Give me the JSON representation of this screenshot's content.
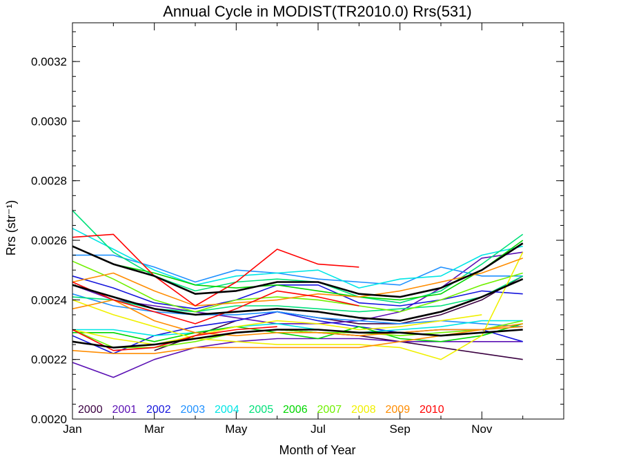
{
  "chart_data": {
    "type": "line",
    "title": "Annual Cycle in MODIST(TR2010.0) Rrs(531)",
    "xlabel": "Month of Year",
    "ylabel": "Rrs (str⁻¹)",
    "xlim": [
      1,
      13
    ],
    "ylim": [
      0.002,
      0.00333
    ],
    "x_ticks": [
      {
        "value": 1,
        "label": "Jan"
      },
      {
        "value": 3,
        "label": "Mar"
      },
      {
        "value": 5,
        "label": "May"
      },
      {
        "value": 7,
        "label": "Jul"
      },
      {
        "value": 9,
        "label": "Sep"
      },
      {
        "value": 11,
        "label": "Nov"
      }
    ],
    "y_ticks": [
      {
        "value": 0.002,
        "label": "0.0020"
      },
      {
        "value": 0.0022,
        "label": "0.0022"
      },
      {
        "value": 0.0024,
        "label": "0.0024"
      },
      {
        "value": 0.0026,
        "label": "0.0026"
      },
      {
        "value": 0.0028,
        "label": "0.0028"
      },
      {
        "value": 0.003,
        "label": "0.0030"
      },
      {
        "value": 0.0032,
        "label": "0.0032"
      }
    ],
    "legend_position": "bottom-left",
    "legend": [
      {
        "label": "2000",
        "color": "#3a0040"
      },
      {
        "label": "2001",
        "color": "#5a10b4"
      },
      {
        "label": "2002",
        "color": "#1414dc"
      },
      {
        "label": "2003",
        "color": "#1e90ff"
      },
      {
        "label": "2004",
        "color": "#00e5e5"
      },
      {
        "label": "2005",
        "color": "#00e07a"
      },
      {
        "label": "2006",
        "color": "#00d600"
      },
      {
        "label": "2007",
        "color": "#70f000"
      },
      {
        "label": "2008",
        "color": "#f0f000"
      },
      {
        "label": "2009",
        "color": "#ff8c00"
      },
      {
        "label": "2010",
        "color": "#ff0000"
      }
    ],
    "series": [
      {
        "color": "#3a0040",
        "x": [
          1,
          2,
          3,
          4,
          5,
          6,
          7,
          8,
          9,
          10,
          11,
          12
        ],
        "y": [
          0.00226,
          0.00224,
          0.00225,
          0.00227,
          0.00229,
          0.0023,
          0.00229,
          0.00228,
          0.00226,
          0.00224,
          0.00222,
          0.0022
        ]
      },
      {
        "color": "#3a0040",
        "x": [
          3,
          4,
          5,
          6,
          7,
          8,
          9,
          10,
          11,
          12
        ],
        "y": [
          0.00223,
          0.00228,
          0.00233,
          0.00236,
          0.00234,
          0.00232,
          0.00232,
          0.00235,
          0.0024,
          0.00248
        ]
      },
      {
        "color": "#5a10b4",
        "x": [
          1,
          2,
          3,
          4,
          5,
          6,
          7,
          8,
          9,
          10,
          11,
          12
        ],
        "y": [
          0.00219,
          0.00214,
          0.0022,
          0.00224,
          0.00226,
          0.00227,
          0.00227,
          0.00227,
          0.00226,
          0.00226,
          0.00226,
          0.00226
        ]
      },
      {
        "color": "#5a10b4",
        "x": [
          1,
          2,
          3,
          4,
          5,
          6,
          7,
          8,
          9,
          10,
          11,
          12
        ],
        "y": [
          0.00245,
          0.0024,
          0.00238,
          0.00236,
          0.00234,
          0.00232,
          0.00232,
          0.00233,
          0.00236,
          0.00244,
          0.00254,
          0.00256
        ]
      },
      {
        "color": "#1414dc",
        "x": [
          1,
          2,
          3,
          4,
          5,
          6,
          7,
          8,
          9,
          10,
          11,
          12
        ],
        "y": [
          0.00228,
          0.00222,
          0.00228,
          0.00231,
          0.00233,
          0.00236,
          0.00233,
          0.00231,
          0.00229,
          0.0023,
          0.0023,
          0.00226
        ]
      },
      {
        "color": "#1414dc",
        "x": [
          1,
          2,
          3,
          4,
          5,
          6,
          7,
          8,
          9,
          10,
          11,
          12
        ],
        "y": [
          0.00248,
          0.00244,
          0.00239,
          0.00237,
          0.0024,
          0.00245,
          0.00245,
          0.00239,
          0.00238,
          0.0024,
          0.00243,
          0.00242
        ]
      },
      {
        "color": "#1e90ff",
        "x": [
          1,
          2,
          3,
          4,
          5,
          6,
          7,
          8,
          9,
          10,
          11,
          12
        ],
        "y": [
          0.00255,
          0.00255,
          0.00251,
          0.00246,
          0.0025,
          0.00249,
          0.00247,
          0.00246,
          0.00245,
          0.00251,
          0.00248,
          0.00248
        ]
      },
      {
        "color": "#1e90ff",
        "x": [
          1,
          2,
          3,
          4,
          5,
          6,
          7,
          8,
          9,
          10,
          11,
          12
        ],
        "y": [
          0.00242,
          0.00238,
          0.00236,
          0.00235,
          0.00235,
          0.00236,
          0.00234,
          0.00233,
          0.00232,
          0.00233,
          0.00232,
          0.00231
        ]
      },
      {
        "color": "#00e5e5",
        "x": [
          1,
          2,
          3,
          4,
          5,
          6,
          7,
          8,
          9,
          10,
          11,
          12
        ],
        "y": [
          0.00264,
          0.00257,
          0.0025,
          0.00245,
          0.00248,
          0.00249,
          0.0025,
          0.00244,
          0.00247,
          0.00248,
          0.00255,
          0.00258
        ]
      },
      {
        "color": "#00e5e5",
        "x": [
          1,
          2,
          3,
          4,
          5,
          6,
          7,
          8,
          9,
          10,
          11,
          12
        ],
        "y": [
          0.0023,
          0.0023,
          0.00228,
          0.00229,
          0.00231,
          0.00232,
          0.0023,
          0.00229,
          0.0023,
          0.00231,
          0.00233,
          0.00233
        ]
      },
      {
        "color": "#00e07a",
        "x": [
          1,
          2,
          3,
          4,
          5,
          6,
          7,
          8,
          9,
          10,
          11,
          12
        ],
        "y": [
          0.0027,
          0.00256,
          0.00248,
          0.00243,
          0.00246,
          0.00247,
          0.00246,
          0.00241,
          0.00239,
          0.00243,
          0.00252,
          0.00262
        ]
      },
      {
        "color": "#00e07a",
        "x": [
          1,
          2,
          3,
          4,
          5,
          6,
          7,
          8,
          9,
          10,
          11,
          12
        ],
        "y": [
          0.00241,
          0.0024,
          0.00237,
          0.00236,
          0.00238,
          0.00238,
          0.00237,
          0.00236,
          0.00237,
          0.00238,
          0.00241,
          0.00248
        ]
      },
      {
        "color": "#00d600",
        "x": [
          1,
          2,
          3,
          4,
          5,
          6,
          7,
          8,
          9,
          10,
          11,
          12
        ],
        "y": [
          0.00258,
          0.00252,
          0.00249,
          0.00245,
          0.00244,
          0.00245,
          0.00243,
          0.00241,
          0.0024,
          0.00242,
          0.0025,
          0.0026
        ]
      },
      {
        "color": "#00d600",
        "x": [
          1,
          2,
          3,
          4,
          5,
          6,
          7,
          8,
          9,
          10,
          11,
          12
        ],
        "y": [
          0.00229,
          0.00229,
          0.00226,
          0.00229,
          0.00231,
          0.00229,
          0.00227,
          0.00231,
          0.00227,
          0.00226,
          0.00228,
          0.00232
        ]
      },
      {
        "color": "#70f000",
        "x": [
          1,
          2,
          3,
          4,
          5,
          6,
          7,
          8,
          9,
          10,
          11,
          12
        ],
        "y": [
          0.00253,
          0.00247,
          0.0024,
          0.00236,
          0.0024,
          0.00241,
          0.0024,
          0.00238,
          0.00236,
          0.0024,
          0.00245,
          0.00249
        ]
      },
      {
        "color": "#70f000",
        "x": [
          1,
          2,
          3,
          4,
          5,
          6,
          7,
          8,
          9,
          10,
          11,
          12
        ],
        "y": [
          0.0023,
          0.00224,
          0.00224,
          0.00226,
          0.00229,
          0.0023,
          0.00229,
          0.00229,
          0.00228,
          0.00229,
          0.0023,
          0.00233
        ]
      },
      {
        "color": "#f0f000",
        "x": [
          1,
          2,
          3,
          4,
          5,
          6,
          7,
          8,
          9,
          10,
          11,
          12
        ],
        "y": [
          0.0024,
          0.00235,
          0.00231,
          0.00227,
          0.00226,
          0.00225,
          0.00225,
          0.00225,
          0.00224,
          0.0022,
          0.00228,
          0.00256
        ]
      },
      {
        "color": "#f0f000",
        "x": [
          1,
          2,
          3,
          4,
          5,
          6,
          7,
          8,
          9,
          10,
          11
        ],
        "y": [
          0.0023,
          0.00227,
          0.00225,
          0.00228,
          0.00231,
          0.00233,
          0.00232,
          0.0023,
          0.00231,
          0.00233,
          0.00235
        ]
      },
      {
        "color": "#ff8c00",
        "x": [
          1,
          2,
          3,
          4,
          5,
          6,
          7,
          8,
          9,
          10,
          11,
          12
        ],
        "y": [
          0.00246,
          0.00249,
          0.00243,
          0.00238,
          0.00239,
          0.0024,
          0.00242,
          0.00241,
          0.00243,
          0.00246,
          0.00249,
          0.00254
        ]
      },
      {
        "color": "#ff8c00",
        "x": [
          1,
          2,
          3,
          4,
          5,
          6,
          7,
          8,
          9,
          10,
          11,
          12
        ],
        "y": [
          0.00237,
          0.0024,
          0.00233,
          0.00229,
          0.00228,
          0.00229,
          0.00229,
          0.00228,
          0.00229,
          0.0023,
          0.0023,
          0.00231
        ]
      },
      {
        "color": "#ff8c00",
        "x": [
          1,
          2,
          3,
          4,
          5,
          6,
          7,
          8,
          9,
          10,
          11,
          12
        ],
        "y": [
          0.00223,
          0.00222,
          0.00222,
          0.00224,
          0.00224,
          0.00224,
          0.00224,
          0.00224,
          0.00226,
          0.00228,
          0.0023,
          0.00232
        ]
      },
      {
        "color": "#ff0000",
        "x": [
          1,
          2,
          3,
          4,
          5,
          6,
          7,
          8
        ],
        "y": [
          0.00261,
          0.00262,
          0.00248,
          0.00238,
          0.00246,
          0.00257,
          0.00252,
          0.00251
        ]
      },
      {
        "color": "#ff0000",
        "x": [
          1,
          2,
          3,
          4,
          5,
          6,
          7,
          8
        ],
        "y": [
          0.00246,
          0.0024,
          0.00236,
          0.00232,
          0.00237,
          0.00243,
          0.00241,
          0.00238
        ]
      },
      {
        "color": "#ff0000",
        "x": [
          1,
          2,
          3,
          4,
          5,
          6
        ],
        "y": [
          0.0023,
          0.00223,
          0.00224,
          0.00228,
          0.0023,
          0.00231
        ]
      },
      {
        "color": "#000000",
        "width": 2.6,
        "x": [
          1,
          2,
          3,
          4,
          5,
          6,
          7,
          8,
          9,
          10,
          11,
          12
        ],
        "y": [
          0.00258,
          0.00252,
          0.00248,
          0.00242,
          0.00243,
          0.00246,
          0.00246,
          0.00242,
          0.00241,
          0.00244,
          0.0025,
          0.00259
        ]
      },
      {
        "color": "#000000",
        "width": 2.6,
        "x": [
          1,
          2,
          3,
          4,
          5,
          6,
          7,
          8,
          9,
          10,
          11,
          12
        ],
        "y": [
          0.00245,
          0.00241,
          0.00237,
          0.00235,
          0.00236,
          0.00237,
          0.00236,
          0.00234,
          0.00233,
          0.00236,
          0.00241,
          0.00247
        ]
      },
      {
        "color": "#000000",
        "width": 2.6,
        "x": [
          1,
          2,
          3,
          4,
          5,
          6,
          7,
          8,
          9,
          10,
          11,
          12
        ],
        "y": [
          0.00226,
          0.00224,
          0.00225,
          0.00227,
          0.00229,
          0.0023,
          0.0023,
          0.00229,
          0.00229,
          0.00228,
          0.00229,
          0.0023
        ]
      }
    ]
  }
}
